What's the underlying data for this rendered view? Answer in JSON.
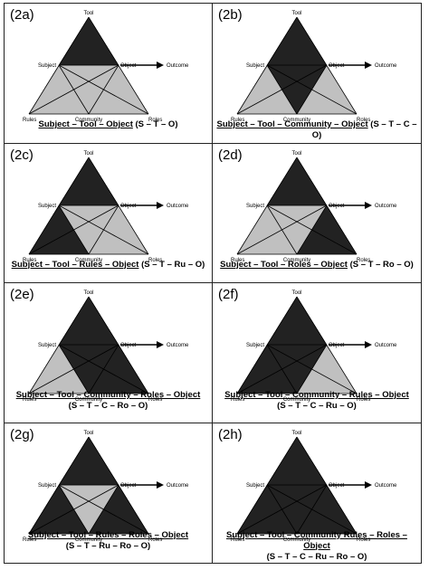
{
  "node_labels": {
    "tool": "Tool",
    "subject": "Subject",
    "object": "Object",
    "outcome": "Outcome",
    "rules": "Rules",
    "community": "Community",
    "roles": "Roles"
  },
  "colors": {
    "highlight": "#222222",
    "base": "#c0c0c0",
    "line": "#000000"
  },
  "panels": [
    {
      "label": "(2a)",
      "caption_main": "Subject – Tool – Object",
      "caption_code": "(S – T – O)",
      "caption_second_line": "",
      "highlight": [
        "tool"
      ]
    },
    {
      "label": "(2b)",
      "caption_main": "Subject – Tool – Community – Object",
      "caption_code": "(S – T – C – O)",
      "caption_second_line": "",
      "highlight": [
        "tool",
        "community"
      ]
    },
    {
      "label": "(2c)",
      "caption_main": "Subject – Tool – Rules – Object",
      "caption_code": "(S – T – Ru – O)",
      "caption_second_line": "",
      "highlight": [
        "tool",
        "rules"
      ]
    },
    {
      "label": "(2d)",
      "caption_main": "Subject – Tool – Roles – Object",
      "caption_code": "(S – T – Ro – O)",
      "caption_second_line": "",
      "highlight": [
        "tool",
        "roles"
      ]
    },
    {
      "label": "(2e)",
      "caption_main": "Subject – Tool – Community – Roles – Object",
      "caption_code": "",
      "caption_second_line": "(S – T – C – Ro – O)",
      "highlight": [
        "tool",
        "community",
        "roles"
      ]
    },
    {
      "label": "(2f)",
      "caption_main": "Subject – Tool – Community – Rules – Object",
      "caption_code": "",
      "caption_second_line": "(S – T – C – Ru – O)",
      "highlight": [
        "tool",
        "community",
        "rules"
      ]
    },
    {
      "label": "(2g)",
      "caption_main": "Subject – Tool – Rules – Roles – Object",
      "caption_code": "",
      "caption_second_line": "(S – T – Ru – Ro – O)",
      "highlight": [
        "tool",
        "rules",
        "roles"
      ]
    },
    {
      "label": "(2h)",
      "caption_main": "Subject – Tool – Community Rules – Roles – Object",
      "caption_code": "",
      "caption_second_line": "(S – T – C – Ru – Ro – O)",
      "highlight": [
        "tool",
        "community",
        "rules",
        "roles"
      ]
    }
  ]
}
